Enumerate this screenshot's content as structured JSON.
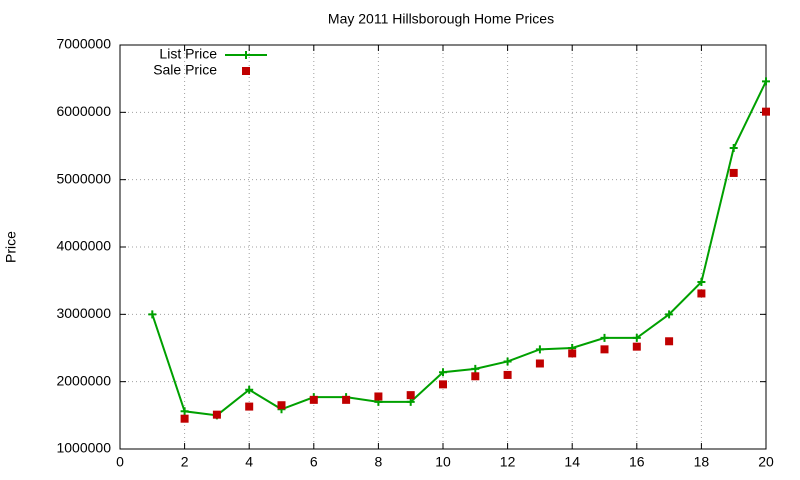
{
  "chart_data": {
    "type": "line",
    "title": "May 2011 Hillsborough Home Prices",
    "y_label": "Price",
    "x": [
      1,
      2,
      3,
      4,
      5,
      6,
      7,
      8,
      9,
      10,
      11,
      12,
      13,
      14,
      15,
      16,
      17,
      18,
      19,
      20
    ],
    "series": [
      {
        "name": "List Price",
        "color": "#00a000",
        "style": "linespoints",
        "values": [
          3000000,
          1560000,
          1500000,
          1880000,
          1590000,
          1770000,
          1770000,
          1700000,
          1700000,
          2140000,
          2190000,
          2300000,
          2480000,
          2500000,
          2650000,
          2650000,
          3000000,
          3480000,
          5470000,
          6460000
        ]
      },
      {
        "name": "Sale Price",
        "color": "#c00000",
        "style": "points",
        "values": [
          null,
          1450000,
          1510000,
          1630000,
          1650000,
          1730000,
          1730000,
          1780000,
          1800000,
          1960000,
          2080000,
          2100000,
          2270000,
          2420000,
          2480000,
          2520000,
          2600000,
          3310000,
          5100000,
          6010000
        ]
      }
    ],
    "xlim": [
      0,
      20
    ],
    "xticks": [
      0,
      2,
      4,
      6,
      8,
      10,
      12,
      14,
      16,
      18,
      20
    ],
    "ylim": [
      1000000,
      7000000
    ],
    "yticks": [
      1000000,
      2000000,
      3000000,
      4000000,
      5000000,
      6000000,
      7000000
    ],
    "grid": true,
    "legend": "top-left"
  }
}
